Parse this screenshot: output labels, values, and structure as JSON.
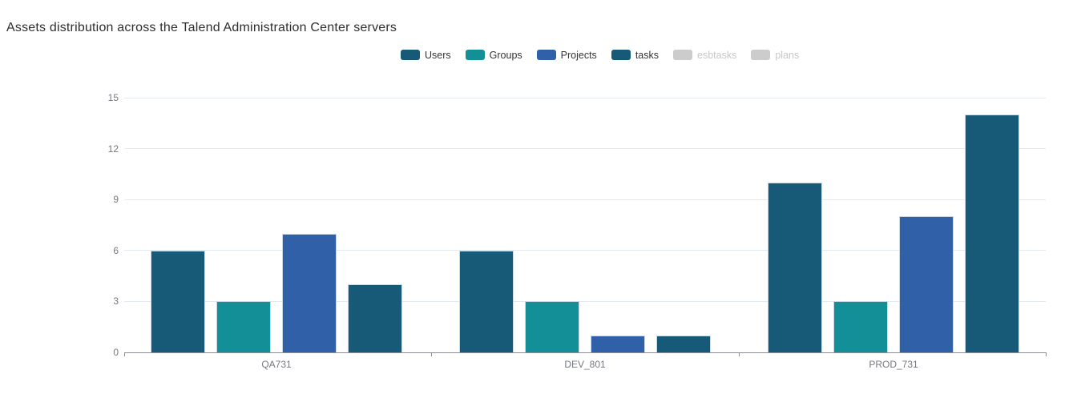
{
  "title": "Assets distribution across the Talend Administration Center servers",
  "colors": {
    "users": "#175A78",
    "groups": "#139097",
    "projects": "#3060A7",
    "tasks": "#175A78",
    "disabled_legend": "#CCCCCC",
    "axis": "#8C9096",
    "grid": "#E3E9F1",
    "tick_text": "#75787E"
  },
  "chart_data": {
    "type": "bar",
    "title": "Assets distribution across the Talend Administration Center servers",
    "categories": [
      "QA731",
      "DEV_801",
      "PROD_731"
    ],
    "series": [
      {
        "name": "Users",
        "color": "#175A78",
        "enabled": true,
        "values": [
          6,
          6,
          10
        ]
      },
      {
        "name": "Groups",
        "color": "#139097",
        "enabled": true,
        "values": [
          3,
          3,
          3
        ]
      },
      {
        "name": "Projects",
        "color": "#3060A7",
        "enabled": true,
        "values": [
          7,
          1,
          8
        ]
      },
      {
        "name": "tasks",
        "color": "#175A78",
        "enabled": true,
        "values": [
          4,
          1,
          14
        ]
      },
      {
        "name": "esbtasks",
        "color": "#CCCCCC",
        "enabled": false,
        "values": []
      },
      {
        "name": "plans",
        "color": "#CCCCCC",
        "enabled": false,
        "values": []
      }
    ],
    "xlabel": "",
    "ylabel": "",
    "ylim": [
      0,
      15
    ],
    "y_ticks": [
      0,
      3,
      6,
      9,
      12,
      15
    ],
    "grid": true,
    "legend_position": "top-center"
  }
}
